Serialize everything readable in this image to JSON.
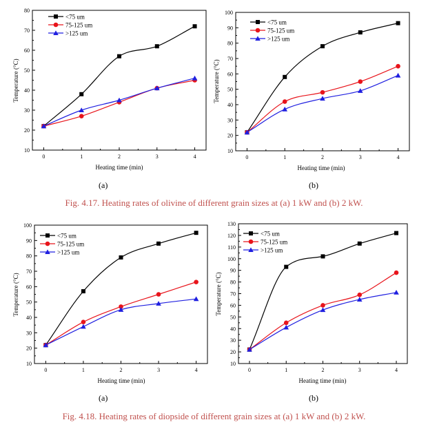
{
  "colors": {
    "s75": "#000000",
    "s75_125": "#e8141b",
    "s125": "#1f1fe0",
    "caption": "#c0504d"
  },
  "legend_labels": [
    "<75 um",
    "75-125 um",
    ">125 um"
  ],
  "captions": {
    "fig417": "Fig. 4.17. Heating rates of olivine of different grain sizes at (a) 1 kW and (b) 2 kW.",
    "fig418": "Fig. 4.18. Heating rates of diopside of different grain sizes at (a) 1 kW and (b) 2 kW."
  },
  "sublabels": {
    "a1": "(a)",
    "b1": "(b)",
    "a2": "(a)",
    "b2": "(b)"
  },
  "chart_data": [
    {
      "type": "line",
      "xlabel": "Heating time (min)",
      "ylabel": "Temperature (°C)",
      "x": [
        0,
        1,
        2,
        3,
        4
      ],
      "xlim": [
        -0.3,
        4.3
      ],
      "ylim": [
        10,
        80
      ],
      "yticks": [
        10,
        20,
        30,
        40,
        50,
        60,
        70,
        80
      ],
      "series": [
        {
          "name": "<75 um",
          "values": [
            22,
            38,
            57,
            62,
            72
          ]
        },
        {
          "name": "75-125 um",
          "values": [
            22,
            27,
            34,
            41,
            45
          ]
        },
        {
          "name": ">125 um",
          "values": [
            22,
            30,
            35,
            41,
            46
          ]
        }
      ]
    },
    {
      "type": "line",
      "xlabel": "Heating time (min)",
      "ylabel": "Temperature (°C)",
      "x": [
        0,
        1,
        2,
        3,
        4
      ],
      "xlim": [
        -0.3,
        4.3
      ],
      "ylim": [
        10,
        100
      ],
      "yticks": [
        10,
        20,
        30,
        40,
        50,
        60,
        70,
        80,
        90,
        100
      ],
      "series": [
        {
          "name": "<75 um",
          "values": [
            22,
            58,
            78,
            87,
            93
          ]
        },
        {
          "name": "75-125 um",
          "values": [
            22,
            42,
            48,
            55,
            65
          ]
        },
        {
          "name": ">125 um",
          "values": [
            22,
            37,
            44,
            49,
            59
          ]
        }
      ]
    },
    {
      "type": "line",
      "xlabel": "Heating time (min)",
      "ylabel": "Temperature (°C)",
      "x": [
        0,
        1,
        2,
        3,
        4
      ],
      "xlim": [
        -0.3,
        4.3
      ],
      "ylim": [
        10,
        100
      ],
      "yticks": [
        10,
        20,
        30,
        40,
        50,
        60,
        70,
        80,
        90,
        100
      ],
      "series": [
        {
          "name": "<75 um",
          "values": [
            22,
            57,
            79,
            88,
            95
          ]
        },
        {
          "name": "75-125 um",
          "values": [
            22,
            37,
            47,
            55,
            63
          ]
        },
        {
          "name": ">125 um",
          "values": [
            22,
            34,
            45,
            49,
            52
          ]
        }
      ]
    },
    {
      "type": "line",
      "xlabel": "Heating time (min)",
      "ylabel": "Temperature (°C)",
      "x": [
        0,
        1,
        2,
        3,
        4
      ],
      "xlim": [
        -0.3,
        4.3
      ],
      "ylim": [
        10,
        130
      ],
      "yticks": [
        10,
        20,
        30,
        40,
        50,
        60,
        70,
        80,
        90,
        100,
        110,
        120,
        130
      ],
      "series": [
        {
          "name": "<75 um",
          "values": [
            22,
            93,
            102,
            113,
            122
          ]
        },
        {
          "name": "75-125 um",
          "values": [
            22,
            45,
            60,
            69,
            88
          ]
        },
        {
          "name": ">125 um",
          "values": [
            22,
            41,
            56,
            65,
            71
          ]
        }
      ]
    }
  ]
}
